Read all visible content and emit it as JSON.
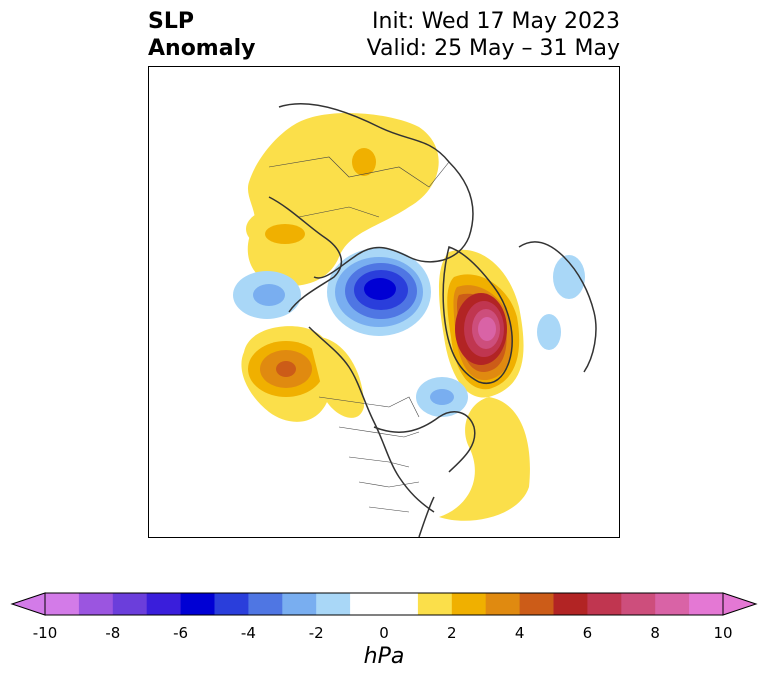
{
  "title": {
    "left_line1": "SLP",
    "left_line2": "Anomaly",
    "right_line1": "Init: Wed 17 May 2023",
    "right_line2": "Valid: 25 May – 31 May"
  },
  "colorbar": {
    "unit": "hPa",
    "ticks": [
      "-10",
      "-8",
      "-6",
      "-4",
      "-2",
      "0",
      "2",
      "4",
      "6",
      "8",
      "10"
    ],
    "colors": [
      "#d37be8",
      "#9b55e0",
      "#6b3edb",
      "#3a1edb",
      "#0000d4",
      "#2a3edb",
      "#4f76e3",
      "#79aef0",
      "#a9d7f7",
      "#ffffff",
      "#ffffff",
      "#fbdf4a",
      "#f0b000",
      "#e08a10",
      "#cc5c18",
      "#b22424",
      "#c03650",
      "#cd4e7c",
      "#d963a6",
      "#e478d4"
    ],
    "extend_low_color": "#d37be8",
    "extend_high_color": "#e478d4"
  },
  "anomalies": [
    {
      "kind": "high",
      "max": "6-8",
      "region": "Greenland Sea / Svalbard"
    },
    {
      "kind": "low",
      "min": "-6",
      "region": "Arctic Ocean / Siberian coast"
    },
    {
      "kind": "high",
      "max": "4",
      "region": "Gulf of Alaska"
    },
    {
      "kind": "high",
      "max": "2",
      "region": "Eastern Siberia"
    },
    {
      "kind": "low",
      "min": "-4",
      "region": "Bering Sea"
    },
    {
      "kind": "high",
      "max": "2",
      "region": "western Atlantic"
    },
    {
      "kind": "low",
      "min": "-2",
      "region": "Hudson Bay"
    }
  ]
}
